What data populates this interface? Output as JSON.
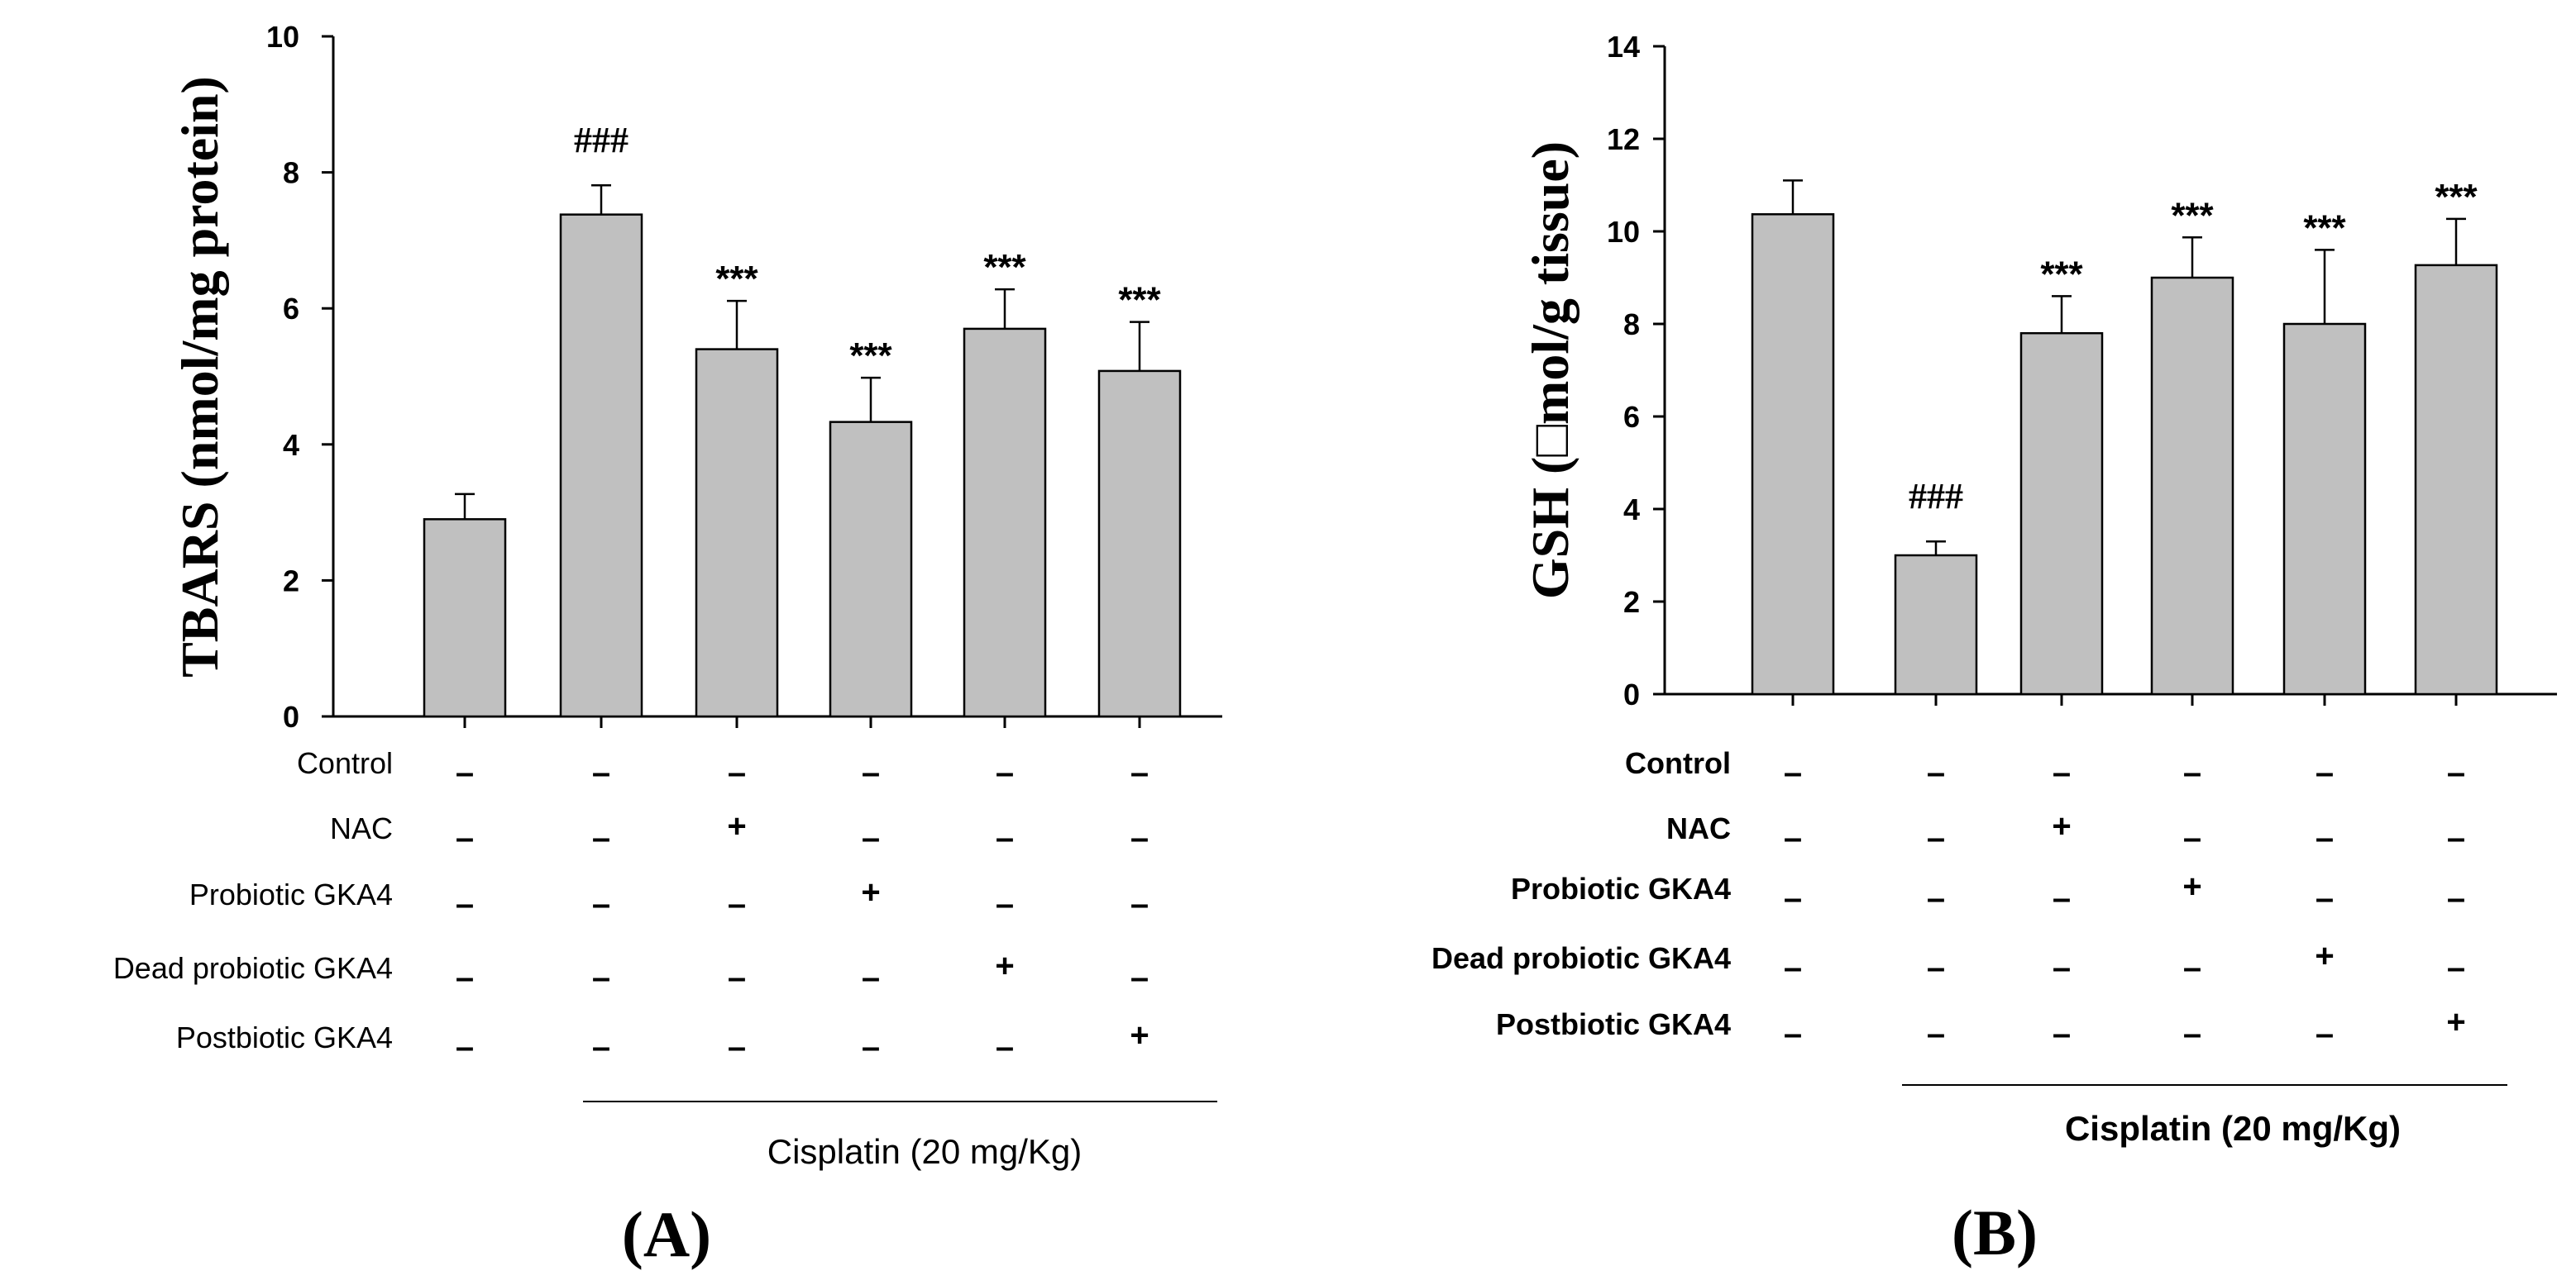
{
  "chart_data": [
    {
      "type": "bar",
      "panel_label": "(A)",
      "ylabel": "TBARS (nmol/mg protein)",
      "ylim": [
        0,
        10
      ],
      "yticks": [
        "0",
        "2",
        "4",
        "6",
        "8",
        "10"
      ],
      "bar_color": "#c0c0c0",
      "categories": [
        "Control",
        "Cisplatin",
        "Cisplatin + NAC",
        "Cisplatin + Probiotic GKA4",
        "Cisplatin + Dead probiotic GKA4",
        "Cisplatin + Postbiotic GKA4"
      ],
      "values": [
        2.9,
        7.38,
        5.4,
        4.33,
        5.7,
        5.08
      ],
      "errors": [
        0.37,
        0.43,
        0.71,
        0.65,
        0.58,
        0.72
      ],
      "annotations": [
        "",
        "###",
        "***",
        "***",
        "***",
        "***"
      ],
      "treatment_rows": [
        {
          "label": "Control",
          "signs": [
            "–",
            "–",
            "–",
            "–",
            "–",
            "–"
          ]
        },
        {
          "label": "NAC",
          "signs": [
            "–",
            "–",
            "+",
            "–",
            "–",
            "–"
          ]
        },
        {
          "label": "Probiotic GKA4",
          "signs": [
            "–",
            "–",
            "–",
            "+",
            "–",
            "–"
          ]
        },
        {
          "label": "Dead probiotic GKA4",
          "signs": [
            "–",
            "–",
            "–",
            "–",
            "+",
            "–"
          ]
        },
        {
          "label": "Postbiotic GKA4",
          "signs": [
            "–",
            "–",
            "–",
            "–",
            "–",
            "+"
          ]
        }
      ],
      "group_label": "Cisplatin (20 mg/Kg)"
    },
    {
      "type": "bar",
      "panel_label": "(B)",
      "ylabel": "GSH (□mol/g tissue)",
      "ylim": [
        0,
        14
      ],
      "yticks": [
        "0",
        "2",
        "4",
        "6",
        "8",
        "10",
        "12",
        "14"
      ],
      "bar_color": "#c0c0c0",
      "categories": [
        "Control",
        "Cisplatin",
        "Cisplatin + NAC",
        "Cisplatin + Probiotic GKA4",
        "Cisplatin + Dead probiotic GKA4",
        "Cisplatin + Postbiotic GKA4"
      ],
      "values": [
        10.37,
        3.0,
        7.8,
        9.0,
        8.0,
        9.27
      ],
      "errors": [
        0.73,
        0.3,
        0.8,
        0.87,
        1.6,
        1.0
      ],
      "annotations": [
        "",
        "###",
        "***",
        "***",
        "***",
        "***"
      ],
      "treatment_rows": [
        {
          "label": "Control",
          "signs": [
            "–",
            "–",
            "–",
            "–",
            "–",
            "–"
          ]
        },
        {
          "label": "NAC",
          "signs": [
            "–",
            "–",
            "+",
            "–",
            "–",
            "–"
          ]
        },
        {
          "label": "Probiotic GKA4",
          "signs": [
            "–",
            "–",
            "–",
            "+",
            "–",
            "–"
          ]
        },
        {
          "label": "Dead probiotic GKA4",
          "signs": [
            "–",
            "–",
            "–",
            "–",
            "+",
            "–"
          ]
        },
        {
          "label": "Postbiotic GKA4",
          "signs": [
            "–",
            "–",
            "–",
            "–",
            "–",
            "+"
          ]
        }
      ],
      "group_label": "Cisplatin (20 mg/Kg)"
    }
  ]
}
